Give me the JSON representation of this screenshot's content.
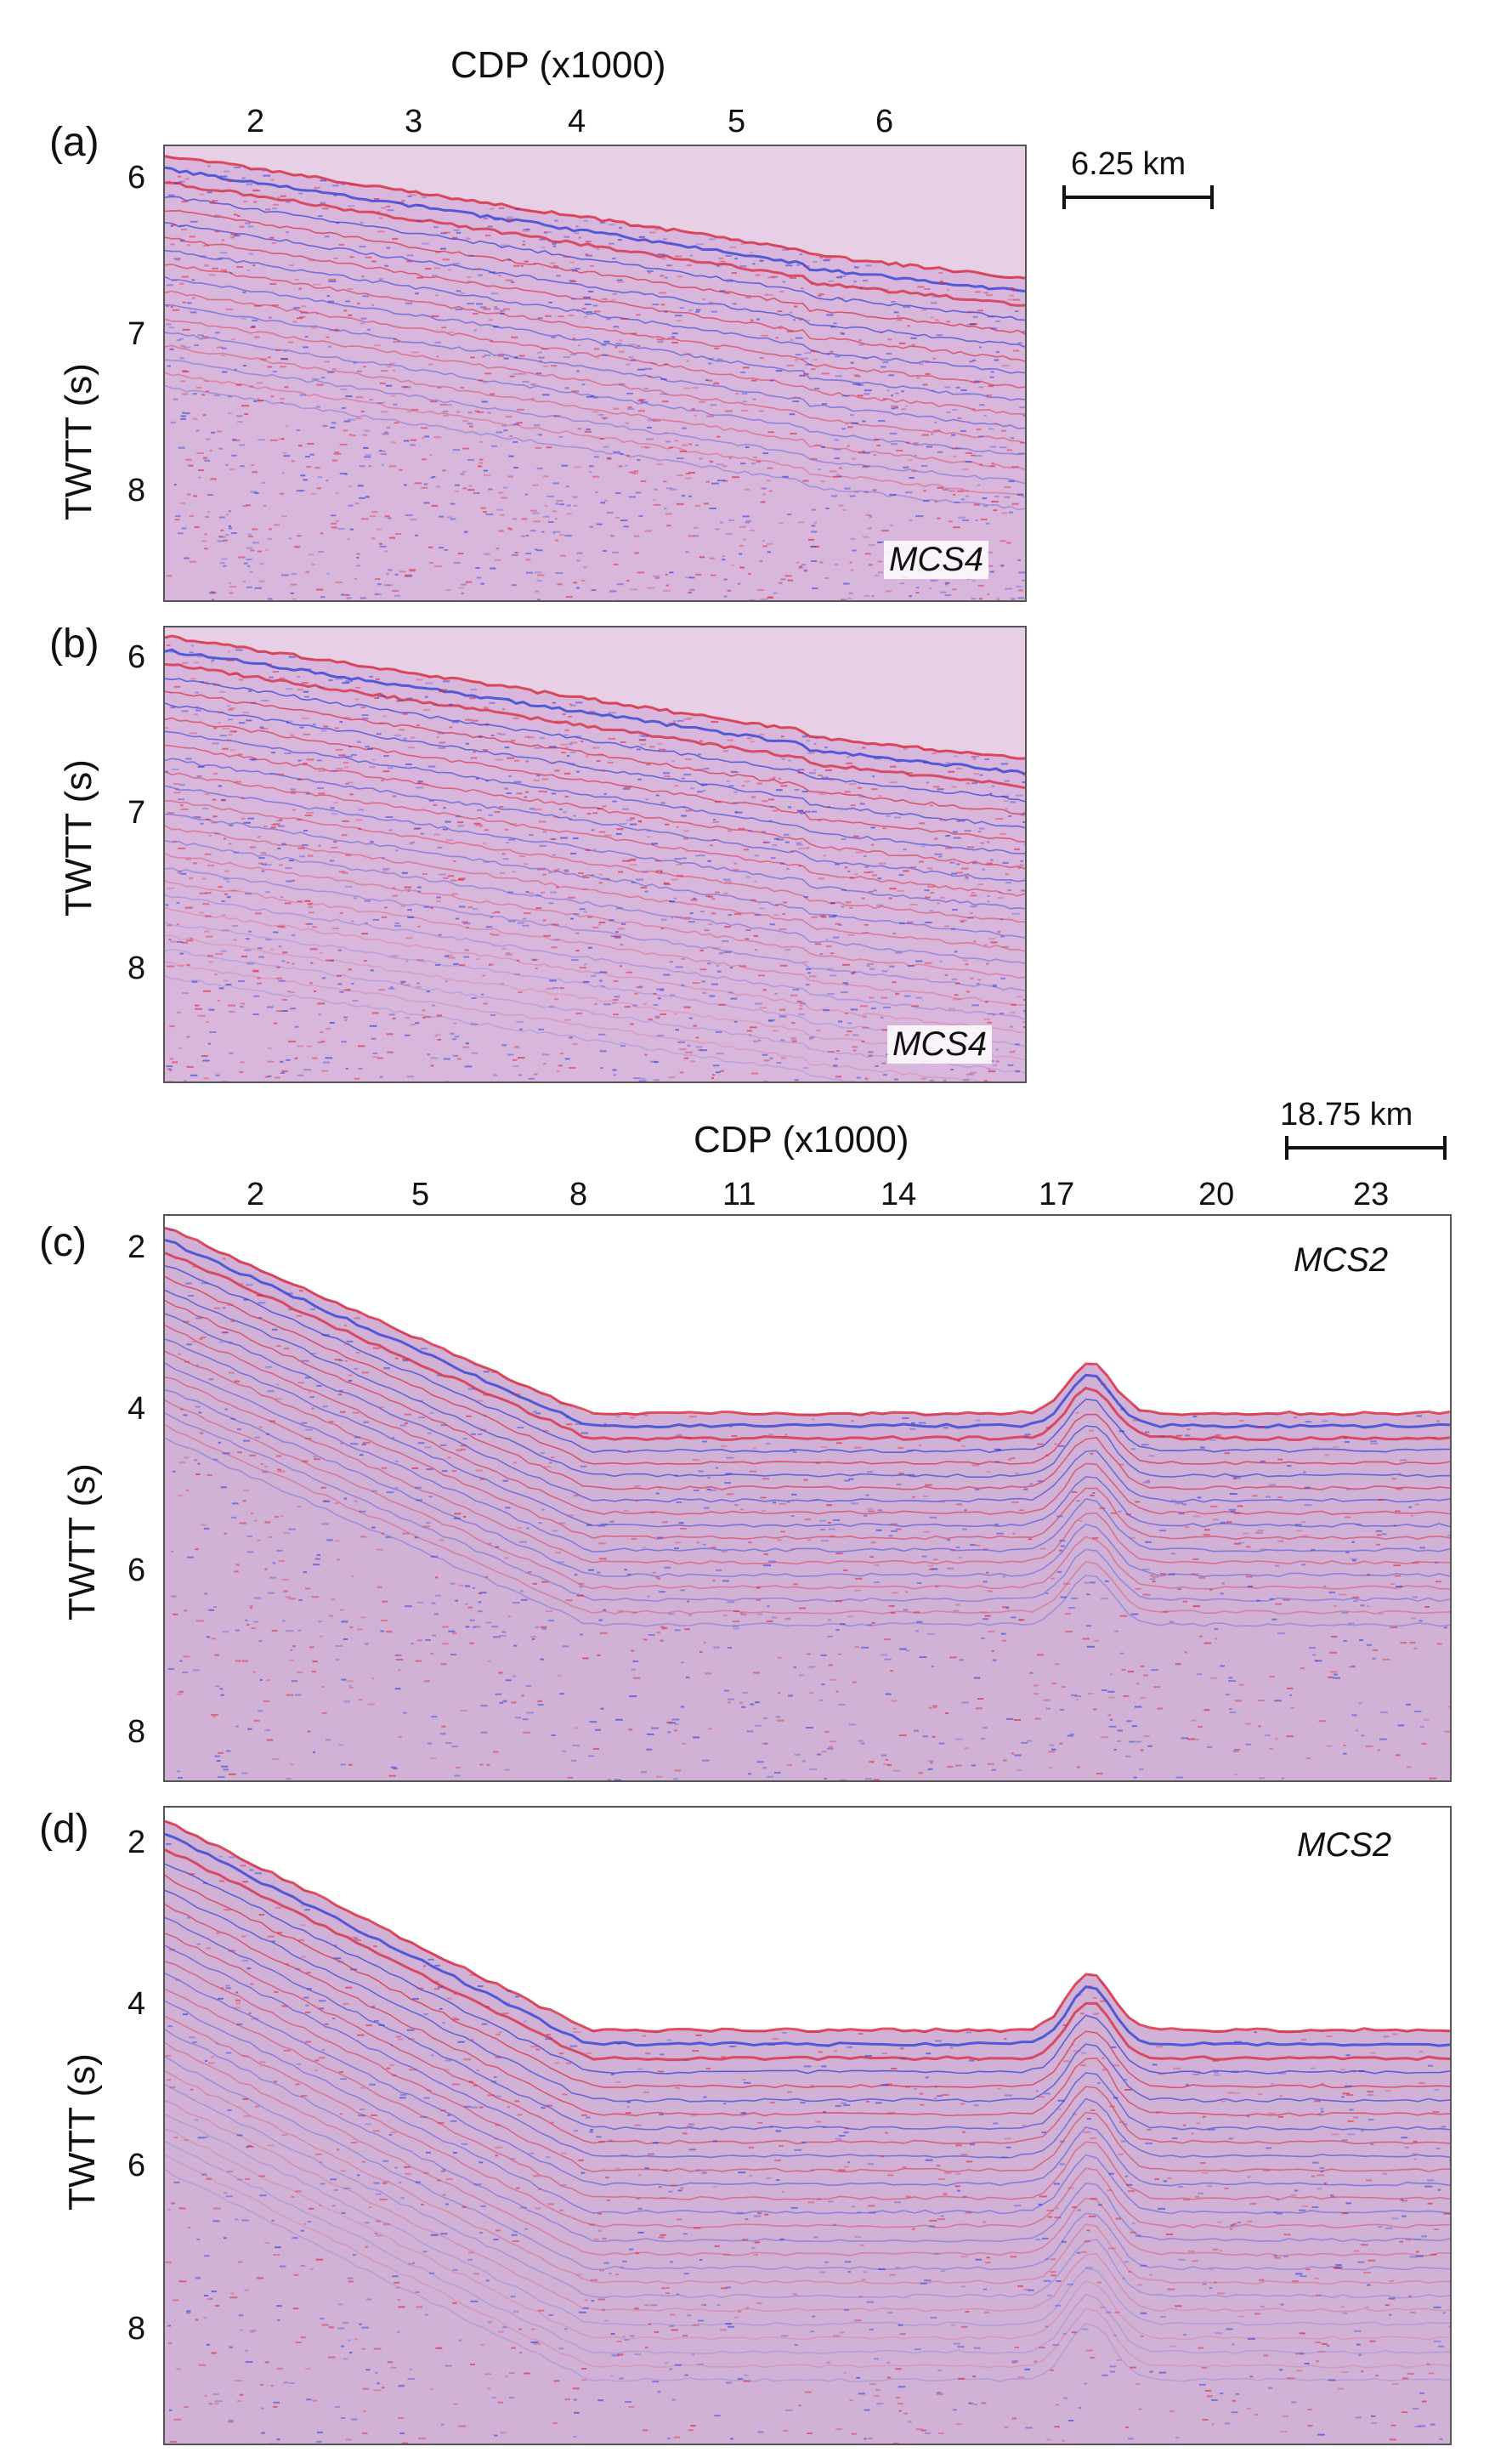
{
  "top_group": {
    "x_axis_title": "CDP (x1000)",
    "x_ticks": [
      "2",
      "3",
      "4",
      "5",
      "6"
    ],
    "scale_bar_label": "6.25 km"
  },
  "bottom_group": {
    "x_axis_title": "CDP (x1000)",
    "x_ticks": [
      "2",
      "5",
      "8",
      "11",
      "14",
      "17",
      "20",
      "23"
    ],
    "scale_bar_label": "18.75 km"
  },
  "panels": [
    {
      "id": "a",
      "label": "(a)",
      "section": "MCS4",
      "ylabel": "TWTT (s)",
      "y_ticks": [
        "6",
        "7",
        "8"
      ]
    },
    {
      "id": "b",
      "label": "(b)",
      "section": "MCS4",
      "ylabel": "TWTT (s)",
      "y_ticks": [
        "6",
        "7",
        "8"
      ]
    },
    {
      "id": "c",
      "label": "(c)",
      "section": "MCS2",
      "ylabel": "TWTT (s)",
      "y_ticks": [
        "2",
        "4",
        "6",
        "8"
      ]
    },
    {
      "id": "d",
      "label": "(d)",
      "section": "MCS2",
      "ylabel": "TWTT (s)",
      "y_ticks": [
        "2",
        "4",
        "6",
        "8"
      ]
    }
  ],
  "colors": {
    "positive": "#d8263a",
    "negative": "#2a3fd6",
    "background": "#e7cfe6"
  }
}
